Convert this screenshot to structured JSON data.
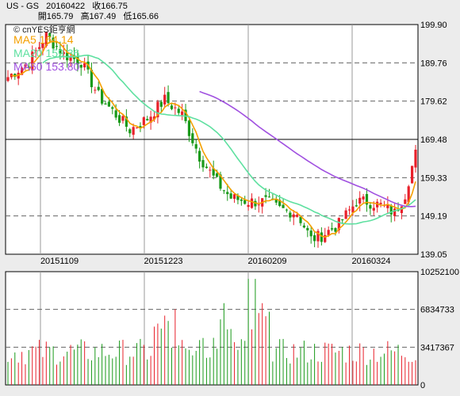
{
  "header": {
    "symbol": "US - GS",
    "date": "20160422",
    "close_label": "收166.75",
    "open_label": "開165.79",
    "high_label": "高167.49",
    "low_label": "低165.66"
  },
  "logo": "© cnYES鉅亨網",
  "moving_averages": [
    {
      "label": "MA5 164.14",
      "color": "#f5a000"
    },
    {
      "label": "MA20 159.36",
      "color": "#5ee0a0"
    },
    {
      "label": "MA60 153.80",
      "color": "#a050e0"
    }
  ],
  "colors": {
    "up": "#e8202a",
    "down": "#1a9a1a",
    "ma5": "#f5a000",
    "ma20": "#5ee0a0",
    "ma60": "#a050e0"
  },
  "chart_data": [
    {
      "type": "candlestick",
      "title": "",
      "y_ticks": [
        "199.90",
        "189.76",
        "179.62",
        "169.48",
        "159.33",
        "149.19",
        "139.05"
      ],
      "ylim": [
        139.05,
        199.9
      ],
      "x_ticks": [
        "20151109",
        "20151223",
        "20160209",
        "20160324"
      ],
      "grid": true
    },
    {
      "type": "bar",
      "title": "",
      "y_ticks": [
        "10252100",
        "6834733",
        "3417367",
        "0"
      ],
      "ylim": [
        0,
        10252100
      ],
      "grid": true
    }
  ]
}
